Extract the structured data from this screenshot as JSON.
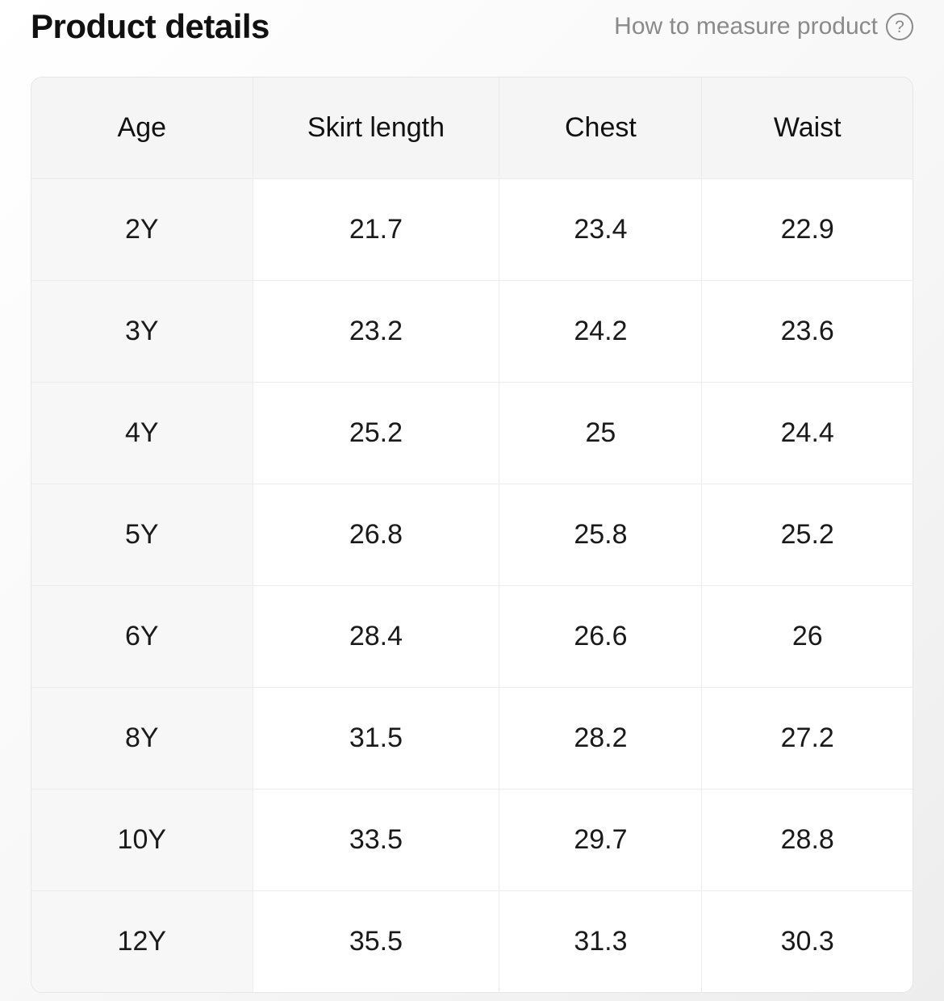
{
  "header": {
    "title": "Product details",
    "help_label": "How to measure product",
    "help_icon_glyph": "?"
  },
  "table": {
    "columns": [
      "Age",
      "Skirt length",
      "Chest",
      "Waist"
    ],
    "rows": [
      [
        "2Y",
        "21.7",
        "23.4",
        "22.9"
      ],
      [
        "3Y",
        "23.2",
        "24.2",
        "23.6"
      ],
      [
        "4Y",
        "25.2",
        "25",
        "24.4"
      ],
      [
        "5Y",
        "26.8",
        "25.8",
        "25.2"
      ],
      [
        "6Y",
        "28.4",
        "26.6",
        "26"
      ],
      [
        "8Y",
        "31.5",
        "28.2",
        "27.2"
      ],
      [
        "10Y",
        "33.5",
        "29.7",
        "28.8"
      ],
      [
        "12Y",
        "35.5",
        "31.3",
        "30.3"
      ]
    ]
  },
  "colors": {
    "title_text": "#111111",
    "muted_text": "#8a8a8a",
    "cell_text": "#1a1a1a",
    "header_bg": "#f5f5f5",
    "row_label_bg": "#f7f7f7",
    "cell_border": "#ececec",
    "table_outline": "#e6e6e6"
  }
}
